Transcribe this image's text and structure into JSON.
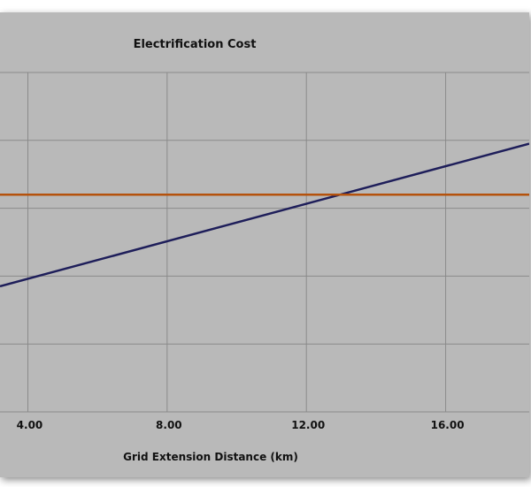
{
  "chart_data": {
    "type": "line",
    "title": "Electrification Cost",
    "xlabel": "Grid Extension Distance (km)",
    "ylabel": "",
    "xlim": [
      3.2,
      18.4
    ],
    "ylim": [
      0,
      5
    ],
    "x_ticks": [
      4,
      8,
      12,
      16
    ],
    "x_tick_labels": [
      "4.00",
      "8.00",
      "12.00",
      "16.00"
    ],
    "y_gridlines": [
      1,
      2,
      3,
      4,
      5
    ],
    "grid": true,
    "legend": "none",
    "series": [
      {
        "x": [
          3.2,
          18.4
        ],
        "values": [
          1.85,
          3.95
        ],
        "color": "#1e1e5a"
      },
      {
        "x": [
          3.2,
          18.4
        ],
        "values": [
          3.2,
          3.2
        ],
        "color": "#b5520c"
      }
    ]
  }
}
